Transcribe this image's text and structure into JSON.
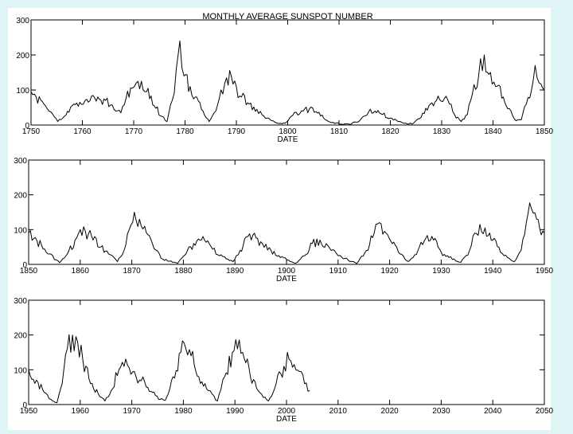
{
  "colors": {
    "slide_background": "#dff4f4",
    "plot_background": "#ffffff",
    "ink": "#000000"
  },
  "chart_data": [
    {
      "type": "line",
      "title": "MONTHLY AVERAGE SUNSPOT NUMBER",
      "xlabel": "DATE",
      "ylabel": "",
      "xlim": [
        1750,
        1850
      ],
      "ylim": [
        0,
        300
      ],
      "grid": false,
      "xticks": [
        "1750",
        "1760",
        "1770",
        "1780",
        "1790",
        "1800",
        "1810",
        "1820",
        "1830",
        "1840",
        "1850"
      ],
      "yticks": [
        "0",
        "100",
        "200",
        "300"
      ],
      "series": [
        {
          "x": [
            1750,
            1751,
            1752.5,
            1753.5,
            1755.2,
            1756.5,
            1758,
            1759.5,
            1761.5,
            1763,
            1764.5,
            1766.5,
            1767.5,
            1768.5,
            1769.7,
            1770.5,
            1771.5,
            1772.5,
            1774,
            1775.5,
            1776.5,
            1777.5,
            1778.3,
            1779,
            1779.8,
            1781,
            1782,
            1783.5,
            1784.7,
            1786,
            1787,
            1788.1,
            1789,
            1790,
            1791,
            1792.5,
            1794,
            1796,
            1797.5,
            1798.3,
            1799.5,
            1801,
            1803,
            1804.2,
            1805.5,
            1807,
            1808.5,
            1810.5,
            1812,
            1814,
            1815.8,
            1817,
            1818.5,
            1820,
            1821.5,
            1823.3,
            1824.5,
            1826,
            1827.5,
            1829,
            1830.5,
            1831.5,
            1832.5,
            1833.8,
            1835,
            1836,
            1837.2,
            1838.3,
            1839.5,
            1840.5,
            1842,
            1843.5,
            1844.5,
            1845.5,
            1846.5,
            1847.5,
            1848.2,
            1849,
            1850
          ],
          "y": [
            95,
            80,
            60,
            40,
            10,
            25,
            55,
            65,
            70,
            80,
            70,
            40,
            35,
            75,
            105,
            120,
            125,
            95,
            55,
            25,
            10,
            70,
            160,
            240,
            140,
            110,
            80,
            40,
            10,
            40,
            100,
            135,
            140,
            110,
            80,
            60,
            45,
            20,
            8,
            4,
            5,
            28,
            40,
            45,
            38,
            20,
            7,
            3,
            2,
            12,
            38,
            40,
            30,
            20,
            10,
            3,
            5,
            22,
            55,
            70,
            75,
            60,
            30,
            10,
            30,
            90,
            140,
            200,
            150,
            110,
            80,
            40,
            12,
            15,
            60,
            100,
            170,
            120,
            100
          ]
        }
      ]
    },
    {
      "type": "line",
      "title": "",
      "xlabel": "DATE",
      "ylabel": "",
      "xlim": [
        1850,
        1950
      ],
      "ylim": [
        0,
        300
      ],
      "grid": false,
      "xticks": [
        "1850",
        "1860",
        "1870",
        "1880",
        "1890",
        "1900",
        "1910",
        "1920",
        "1930",
        "1940",
        "1950"
      ],
      "yticks": [
        "0",
        "100",
        "200",
        "300"
      ],
      "series": [
        {
          "x": [
            1850,
            1851,
            1852.5,
            1854,
            1856,
            1857.5,
            1859,
            1860,
            1861,
            1862.5,
            1864,
            1865.5,
            1867.2,
            1868.5,
            1869.5,
            1870.5,
            1871.5,
            1872.5,
            1874,
            1876,
            1878.9,
            1880.5,
            1882,
            1883.5,
            1885,
            1887,
            1889.6,
            1891,
            1892.5,
            1893.5,
            1895,
            1897,
            1898.5,
            1901.7,
            1903.5,
            1905,
            1906.5,
            1908,
            1910,
            1913.6,
            1915.5,
            1917,
            1918,
            1919,
            1920.5,
            1922,
            1923.6,
            1925.5,
            1927,
            1928.5,
            1930,
            1931.5,
            1933.8,
            1935.5,
            1936.5,
            1937.5,
            1938.5,
            1940,
            1941.5,
            1944.2,
            1945.5,
            1946.5,
            1947.5,
            1948.5,
            1950
          ],
          "y": [
            90,
            75,
            55,
            30,
            5,
            30,
            70,
            100,
            95,
            70,
            50,
            30,
            8,
            40,
            100,
            150,
            130,
            110,
            60,
            15,
            3,
            30,
            60,
            70,
            60,
            25,
            8,
            40,
            80,
            85,
            65,
            40,
            25,
            3,
            25,
            60,
            70,
            55,
            25,
            2,
            40,
            90,
            120,
            95,
            60,
            30,
            8,
            40,
            75,
            70,
            35,
            20,
            6,
            40,
            90,
            115,
            105,
            70,
            35,
            8,
            40,
            120,
            160,
            130,
            90
          ]
        }
      ]
    },
    {
      "type": "line",
      "title": "",
      "xlabel": "DATE",
      "ylabel": "",
      "xlim": [
        1950,
        2050
      ],
      "ylim": [
        0,
        300
      ],
      "grid": false,
      "xticks": [
        "1950",
        "1960",
        "1970",
        "1980",
        "1990",
        "2000",
        "2010",
        "2020",
        "2030",
        "2040",
        "2050"
      ],
      "yticks": [
        "0",
        "100",
        "200",
        "300"
      ],
      "series": [
        {
          "x": [
            1950,
            1951.5,
            1953,
            1954.3,
            1955.5,
            1956.5,
            1957.5,
            1958.5,
            1959.5,
            1960.5,
            1962,
            1963.5,
            1964.8,
            1966,
            1967.5,
            1968.5,
            1969.5,
            1970.5,
            1971.5,
            1972.5,
            1974,
            1975.5,
            1976.5,
            1978,
            1979.5,
            1980.5,
            1981.5,
            1983,
            1984.5,
            1986.6,
            1988,
            1989.5,
            1990.5,
            1991.5,
            1993,
            1994.5,
            1996.5,
            1998,
            1999.5,
            2000.5,
            2001.5,
            2002.5,
            2003.5,
            2004.5
          ],
          "y": [
            100,
            70,
            35,
            15,
            5,
            60,
            160,
            200,
            180,
            130,
            60,
            30,
            10,
            40,
            100,
            110,
            105,
            95,
            70,
            65,
            35,
            15,
            12,
            80,
            150,
            160,
            140,
            80,
            45,
            10,
            80,
            150,
            160,
            150,
            80,
            40,
            10,
            60,
            110,
            130,
            115,
            95,
            60,
            40
          ]
        }
      ]
    }
  ]
}
